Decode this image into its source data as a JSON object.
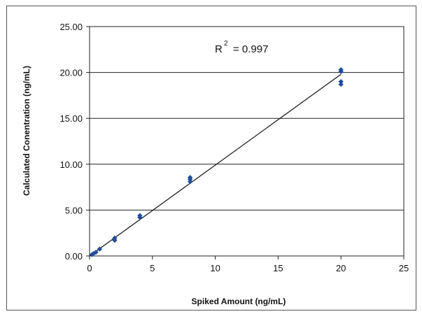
{
  "chart_data": {
    "type": "scatter",
    "title": "",
    "xlabel": "Spiked Amount (ng/mL)",
    "ylabel": "Calculated Conentration (ng/mL)",
    "xlim": [
      0,
      25
    ],
    "ylim": [
      0,
      25
    ],
    "x_ticks": [
      0,
      5,
      10,
      15,
      20,
      25
    ],
    "y_ticks": [
      0,
      5,
      10,
      15,
      20,
      25
    ],
    "x_tick_labels": [
      "0",
      "5",
      "10",
      "15",
      "20",
      "25"
    ],
    "y_tick_labels": [
      "0.00",
      "5.00",
      "10.00",
      "15.00",
      "20.00",
      "25.00"
    ],
    "grid": "horizontal",
    "point_color": "#1f4e9a",
    "series": [
      {
        "points": [
          {
            "x": 0.2,
            "y": 0.15
          },
          {
            "x": 0.3,
            "y": 0.25
          },
          {
            "x": 0.5,
            "y": 0.4
          },
          {
            "x": 0.8,
            "y": 0.75
          },
          {
            "x": 2,
            "y": 1.7
          },
          {
            "x": 2,
            "y": 1.95
          },
          {
            "x": 4,
            "y": 4.2
          },
          {
            "x": 4,
            "y": 4.4
          },
          {
            "x": 8,
            "y": 8.1
          },
          {
            "x": 8,
            "y": 8.35
          },
          {
            "x": 8,
            "y": 8.55
          },
          {
            "x": 20,
            "y": 18.7
          },
          {
            "x": 20,
            "y": 19.0
          },
          {
            "x": 20,
            "y": 20.1
          },
          {
            "x": 20,
            "y": 20.3
          }
        ]
      }
    ],
    "trendline": {
      "x1": 0,
      "y1": 0,
      "x2": 20,
      "y2": 19.8
    },
    "annotation": {
      "base": "R",
      "superscript": "2",
      "text": "= 0.997"
    }
  }
}
